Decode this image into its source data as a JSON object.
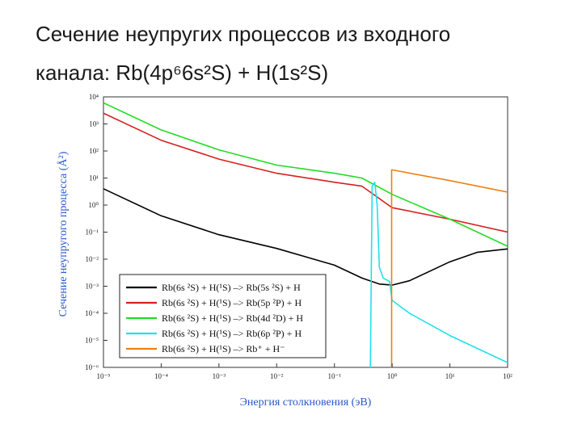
{
  "slide": {
    "title_line1": "Сечение неупругих процессов из входного",
    "title_line2": "канала: Rb(4p⁶6s²S) + H(1s²S)"
  },
  "chart_data": {
    "type": "line",
    "xlabel": "Энергия столкновения (эВ)",
    "ylabel": "Сечение неупругого процесса (Å²)",
    "x_scale": "log",
    "y_scale": "log",
    "xlim": [
      1e-05,
      100
    ],
    "ylim": [
      1e-06,
      10000
    ],
    "x_ticks": [
      {
        "value": 1e-05,
        "label": "10⁻⁵"
      },
      {
        "value": 0.0001,
        "label": "10⁻⁴"
      },
      {
        "value": 0.001,
        "label": "10⁻³"
      },
      {
        "value": 0.01,
        "label": "10⁻²"
      },
      {
        "value": 0.1,
        "label": "10⁻¹"
      },
      {
        "value": 1,
        "label": "10⁰"
      },
      {
        "value": 10,
        "label": "10¹"
      },
      {
        "value": 100,
        "label": "10²"
      }
    ],
    "y_ticks": [
      {
        "value": 10000,
        "label": "10⁴"
      },
      {
        "value": 1000,
        "label": "10³"
      },
      {
        "value": 100,
        "label": "10²"
      },
      {
        "value": 10,
        "label": "10¹"
      },
      {
        "value": 1,
        "label": "10⁰"
      },
      {
        "value": 0.1,
        "label": "10⁻¹"
      },
      {
        "value": 0.01,
        "label": "10⁻²"
      },
      {
        "value": 0.001,
        "label": "10⁻³"
      },
      {
        "value": 0.0001,
        "label": "10⁻⁴"
      },
      {
        "value": 1e-05,
        "label": "10⁻⁵"
      },
      {
        "value": 1e-06,
        "label": "10⁻⁶"
      }
    ],
    "grid": false,
    "legend_position": "bottom-left",
    "series": [
      {
        "name": "Rb(6s ²S) + H(¹S) –> Rb(5s ²S) + H",
        "color": "#000000",
        "x": [
          1e-05,
          0.0001,
          0.001,
          0.01,
          0.1,
          0.3,
          0.6,
          1,
          2,
          5,
          10,
          30,
          100
        ],
        "y": [
          4,
          0.4,
          0.08,
          0.025,
          0.006,
          0.002,
          0.0012,
          0.0011,
          0.0016,
          0.004,
          0.008,
          0.018,
          0.024
        ]
      },
      {
        "name": "Rb(6s ²S) + H(¹S) –> Rb(5p ²P) + H",
        "color": "#d62020",
        "x": [
          1e-05,
          0.0001,
          0.001,
          0.01,
          0.1,
          0.3,
          1,
          10,
          100
        ],
        "y": [
          2500,
          250,
          50,
          15,
          7,
          5,
          0.8,
          0.3,
          0.1
        ]
      },
      {
        "name": "Rb(6s ²S) + H(¹S) –> Rb(4d ²D) + H",
        "color": "#22dd22",
        "x": [
          1e-05,
          0.0001,
          0.001,
          0.01,
          0.1,
          0.3,
          1,
          10,
          100
        ],
        "y": [
          6000,
          600,
          110,
          30,
          15,
          10,
          2.5,
          0.3,
          0.03
        ]
      },
      {
        "name": "Rb(6s ²S) + H(¹S) –> Rb(6p ²P) + H",
        "color": "#22e0e8",
        "x": [
          0.42,
          0.45,
          0.5,
          0.55,
          0.6,
          0.7,
          0.9,
          1.0,
          2,
          10,
          100
        ],
        "y": [
          1e-06,
          5,
          7,
          1,
          0.005,
          0.002,
          0.0015,
          0.0003,
          0.0001,
          1.5e-05,
          1.5e-06
        ]
      },
      {
        "name": "Rb(6s ²S) + H(¹S) –> Rb⁺ + H⁻",
        "color": "#f07f10",
        "x": [
          0.98,
          0.98,
          1,
          10,
          100
        ],
        "y": [
          1e-06,
          20,
          20,
          8,
          3
        ]
      }
    ]
  }
}
